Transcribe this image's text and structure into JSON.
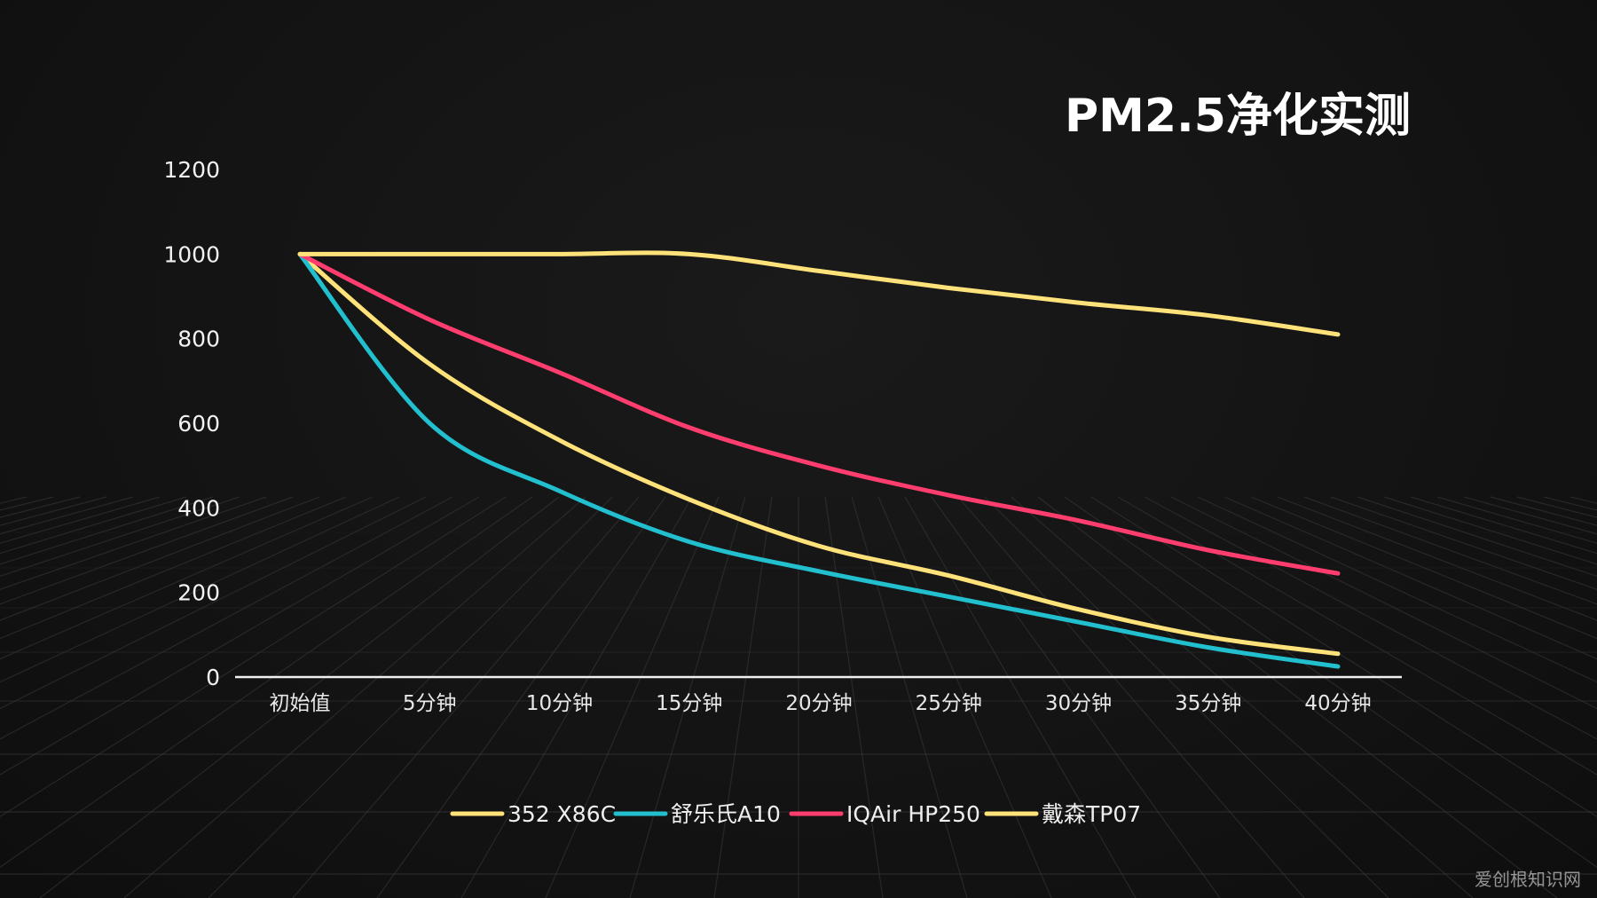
{
  "chart_data": {
    "type": "line",
    "title": "PM2.5净化实测",
    "xlabel": "",
    "ylabel": "",
    "categories": [
      "初始值",
      "5分钟",
      "10分钟",
      "15分钟",
      "20分钟",
      "25分钟",
      "30分钟",
      "35分钟",
      "40分钟"
    ],
    "yticks": [
      0,
      200,
      400,
      600,
      800,
      1000,
      1200
    ],
    "ylim": [
      0,
      1200
    ],
    "grid": false,
    "legend": "bottom",
    "series": [
      {
        "name": "352 X86C",
        "color": "#ffe27a",
        "values": [
          1000,
          740,
          560,
          420,
          310,
          240,
          160,
          95,
          55
        ]
      },
      {
        "name": "舒乐氏A10",
        "color": "#22c0cf",
        "values": [
          1000,
          600,
          440,
          320,
          250,
          190,
          130,
          70,
          25
        ]
      },
      {
        "name": "IQAir HP250",
        "color": "#ff3d6e",
        "values": [
          1000,
          845,
          720,
          590,
          500,
          430,
          370,
          300,
          245
        ]
      },
      {
        "name": "戴森TP07",
        "color": "#ffe27a",
        "values": [
          1000,
          1000,
          1000,
          1000,
          960,
          920,
          885,
          855,
          810
        ]
      }
    ]
  },
  "watermark": "爱创根知识网"
}
